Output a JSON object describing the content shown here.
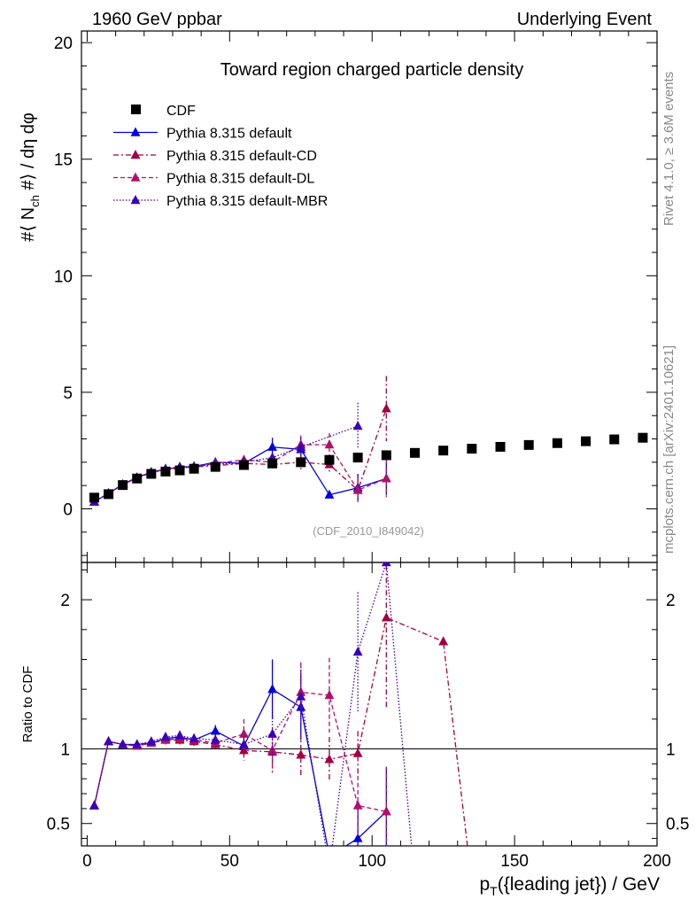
{
  "header": {
    "left": "1960 GeV ppbar",
    "right": "Underlying Event"
  },
  "side_labels": {
    "rivet": "Rivet 4.1.0, ≥ 3.6M events",
    "mcplots": "mcplots.cern.ch [arXiv:2401.10621]"
  },
  "chart_data": {
    "type": "scatter",
    "title": "Toward region charged particle density",
    "analysis_tag": "(CDF_2010_I849042)",
    "ylabel_main": "#⟨ Nch #⟩ / dη dφ",
    "ylabel_parts": [
      "#⟨ N",
      "ch",
      " #⟩ / dη dφ"
    ],
    "ylabel_ratio": "Ratio to CDF",
    "xlabel": "pT({leading jet}) / GeV",
    "xlabel_parts": [
      "p",
      "T",
      "({leading jet}) / GeV"
    ],
    "xlim": [
      -2,
      200
    ],
    "ylim_main": [
      -2.3,
      20.5
    ],
    "ylim_ratio": [
      0.35,
      2.25
    ],
    "x_ticks": [
      0,
      50,
      100,
      150,
      200
    ],
    "y_ticks_main": [
      0,
      5,
      10,
      15,
      20
    ],
    "y_ticks_ratio": [
      0.5,
      1,
      2
    ],
    "legend_position": "top-left",
    "x": [
      2.5,
      7.5,
      12.5,
      17.5,
      22.5,
      27.5,
      32.5,
      37.5,
      45,
      55,
      65,
      75,
      85,
      95,
      105,
      115,
      125,
      135,
      145,
      155,
      165,
      175,
      185,
      195
    ],
    "series": [
      {
        "name": "CDF",
        "color": "#000000",
        "marker": "square",
        "dash": "",
        "values": [
          0.48,
          0.63,
          1.02,
          1.3,
          1.5,
          1.6,
          1.65,
          1.72,
          1.8,
          1.88,
          1.95,
          2.0,
          2.1,
          2.2,
          2.3,
          2.4,
          2.5,
          2.58,
          2.66,
          2.74,
          2.82,
          2.9,
          2.98,
          3.05
        ]
      },
      {
        "name": "Pythia 8.315 default",
        "color": "#0000e0",
        "marker": "triangle",
        "dash": "",
        "values": [
          0.3,
          0.67,
          1.05,
          1.35,
          1.57,
          1.7,
          1.78,
          1.82,
          2.0,
          1.95,
          2.65,
          2.55,
          0.6,
          0.9,
          1.3,
          null,
          null,
          null,
          null,
          null,
          null,
          null,
          null,
          null
        ],
        "errors": [
          0.03,
          0.03,
          0.04,
          0.05,
          0.05,
          0.06,
          0.06,
          0.07,
          0.08,
          0.12,
          0.4,
          0.45,
          0.05,
          0.6,
          0.7,
          null,
          null,
          null,
          null,
          null,
          null,
          null,
          null,
          null
        ],
        "ratio": [
          0.62,
          1.05,
          1.03,
          1.03,
          1.04,
          1.07,
          1.08,
          1.06,
          1.12,
          1.02,
          1.4,
          1.28,
          0.28,
          0.4,
          0.58,
          null,
          null,
          null,
          null,
          null,
          null,
          null,
          null,
          null
        ],
        "ratio_errors": [
          0.02,
          0.02,
          0.02,
          0.02,
          0.02,
          0.03,
          0.03,
          0.03,
          0.04,
          0.06,
          0.2,
          0.22,
          0.03,
          0.2,
          0.3,
          null,
          null,
          null,
          null,
          null,
          null,
          null,
          null,
          null
        ]
      },
      {
        "name": "Pythia 8.315 default-CD",
        "color": "#a00040",
        "marker": "triangle",
        "dash": "6,3,2,3",
        "values": [
          0.3,
          0.66,
          1.04,
          1.33,
          1.55,
          1.68,
          1.75,
          1.8,
          1.85,
          1.95,
          1.9,
          2.0,
          1.9,
          0.8,
          4.3,
          null,
          null,
          null,
          null,
          null,
          null,
          null,
          null,
          null
        ],
        "errors": [
          0.03,
          0.03,
          0.04,
          0.05,
          0.05,
          0.06,
          0.06,
          0.07,
          0.08,
          0.15,
          0.25,
          0.3,
          0.3,
          0.3,
          1.4,
          null,
          null,
          null,
          null,
          null,
          null,
          null,
          null,
          null
        ],
        "ratio": [
          0.62,
          1.05,
          1.03,
          1.02,
          1.04,
          1.06,
          1.06,
          1.05,
          1.03,
          0.99,
          0.98,
          0.96,
          0.93,
          0.97,
          1.88,
          null,
          1.72,
          0.1,
          null,
          null,
          null,
          null,
          null,
          null
        ],
        "ratio_errors": [
          0.02,
          0.02,
          0.02,
          0.02,
          0.02,
          0.03,
          0.03,
          0.03,
          0.04,
          0.07,
          0.12,
          0.15,
          0.15,
          0.15,
          0.6,
          null,
          0.0,
          0.0,
          null,
          null,
          null,
          null,
          null,
          null
        ]
      },
      {
        "name": "Pythia 8.315 default-DL",
        "color": "#b0106a",
        "marker": "triangle",
        "dash": "5,3",
        "values": [
          0.3,
          0.66,
          1.04,
          1.33,
          1.55,
          1.7,
          1.78,
          1.8,
          1.95,
          2.1,
          2.0,
          2.75,
          2.75,
          0.8,
          1.3,
          null,
          null,
          null,
          null,
          null,
          null,
          null,
          null,
          null
        ],
        "errors": [
          0.03,
          0.03,
          0.04,
          0.05,
          0.05,
          0.06,
          0.06,
          0.07,
          0.08,
          0.2,
          0.3,
          0.4,
          0.5,
          0.5,
          0.8,
          null,
          null,
          null,
          null,
          null,
          null,
          null,
          null,
          null
        ],
        "ratio": [
          0.62,
          1.05,
          1.03,
          1.02,
          1.04,
          1.06,
          1.07,
          1.06,
          1.04,
          1.1,
          0.99,
          1.38,
          1.36,
          0.62,
          0.58,
          null,
          null,
          null,
          null,
          null,
          null,
          null,
          null,
          null
        ],
        "ratio_errors": [
          0.02,
          0.02,
          0.02,
          0.02,
          0.02,
          0.03,
          0.03,
          0.03,
          0.04,
          0.1,
          0.15,
          0.2,
          0.25,
          0.2,
          0.3,
          null,
          null,
          null,
          null,
          null,
          null,
          null,
          null,
          null
        ]
      },
      {
        "name": "Pythia 8.315 default-MBR",
        "color": "#3c00b4",
        "marker": "triangle",
        "dash": "1.5,2",
        "values": [
          0.3,
          0.66,
          1.04,
          1.33,
          1.57,
          1.72,
          1.8,
          1.82,
          1.9,
          2.0,
          2.2,
          2.65,
          null,
          3.55,
          null,
          null,
          null,
          null,
          null,
          null,
          null,
          null,
          null,
          null
        ],
        "errors": [
          0.03,
          0.03,
          0.04,
          0.05,
          0.05,
          0.06,
          0.06,
          0.07,
          0.08,
          0.1,
          0.3,
          0.4,
          null,
          1.0,
          null,
          null,
          null,
          null,
          null,
          null,
          null,
          null,
          null,
          null
        ],
        "ratio": [
          0.62,
          1.05,
          1.03,
          1.03,
          1.05,
          1.08,
          1.09,
          1.07,
          1.06,
          1.03,
          1.1,
          1.35,
          0.2,
          1.65,
          2.25,
          0.1,
          null,
          null,
          null,
          null,
          null,
          null,
          null,
          null
        ],
        "ratio_errors": [
          0.02,
          0.02,
          0.02,
          0.02,
          0.02,
          0.03,
          0.03,
          0.03,
          0.04,
          0.05,
          0.15,
          0.2,
          0.0,
          0.4,
          0.0,
          0.0,
          null,
          null,
          null,
          null,
          null,
          null,
          null,
          null
        ]
      }
    ]
  }
}
